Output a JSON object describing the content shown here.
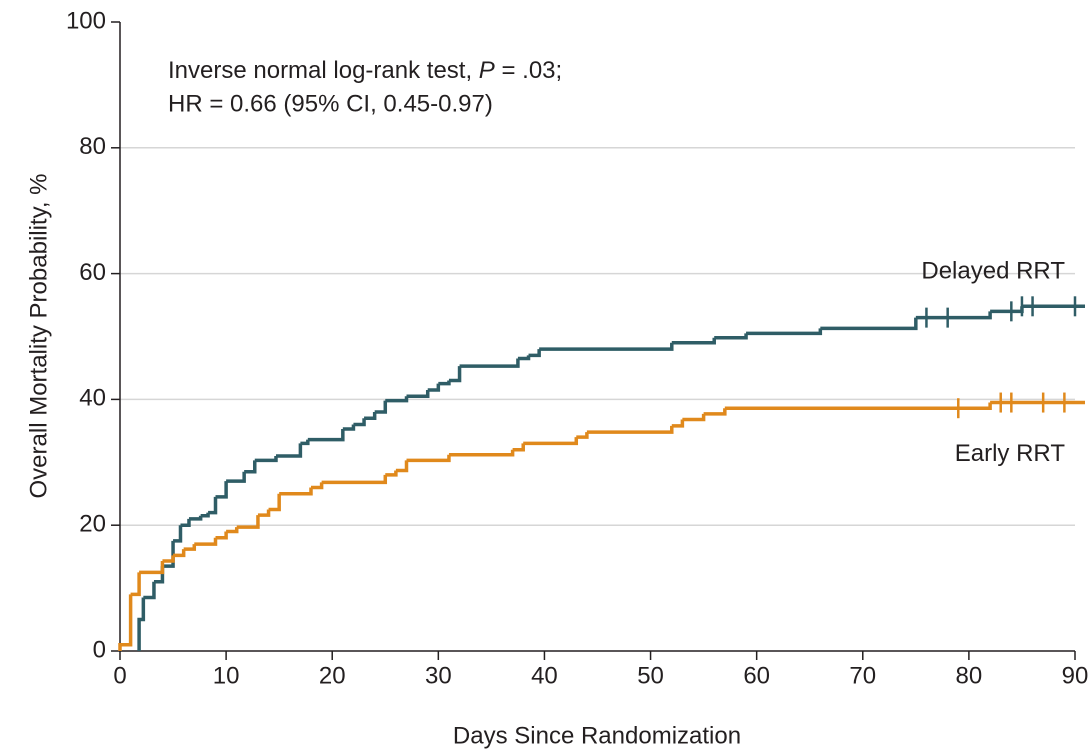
{
  "chart_data": {
    "type": "step",
    "xlabel": "Days Since Randomization",
    "ylabel": "Overall Mortality Probability, %",
    "annotation_line1": [
      "Inverse normal log-rank test, ",
      "P",
      " = .03;"
    ],
    "annotation_line2": "HR = 0.66 (95% CI, 0.45-0.97)",
    "xlim": [
      0,
      90
    ],
    "xticks": [
      0,
      10,
      20,
      30,
      40,
      50,
      60,
      70,
      80,
      90
    ],
    "ylim": [
      0,
      100
    ],
    "yticks": [
      0,
      20,
      40,
      60,
      80,
      100
    ],
    "grid": true,
    "series": [
      {
        "name": "Delayed RRT",
        "color": "#2f5d66",
        "x": [
          1.8,
          2.2,
          3.2,
          4,
          5,
          5.7,
          6.5,
          7.6,
          8.3,
          9,
          10,
          11.7,
          12.7,
          14.7,
          17,
          17.7,
          21,
          22,
          23,
          24,
          25,
          27,
          29,
          30,
          31,
          32,
          37.5,
          38.5,
          39.5,
          52,
          56,
          59,
          66,
          75,
          82,
          85
        ],
        "values": [
          5,
          8.5,
          11,
          13.5,
          17.5,
          20,
          21,
          21.5,
          22,
          24.5,
          27,
          28.5,
          30.3,
          31,
          33,
          33.6,
          35.3,
          36,
          37,
          38,
          39.8,
          40.5,
          41.5,
          42.5,
          43,
          45.3,
          46.5,
          47,
          48,
          49,
          49.8,
          50.5,
          51.3,
          53,
          54,
          54.8
        ],
        "censored": [
          76,
          78,
          84,
          85,
          86,
          90
        ]
      },
      {
        "name": "Early RRT",
        "color": "#e0891c",
        "x": [
          0,
          1,
          1.8,
          4,
          5,
          6,
          7,
          9,
          10,
          11,
          13,
          14,
          15,
          18,
          19,
          25,
          26,
          27,
          31,
          37,
          38,
          43,
          44,
          52,
          53,
          55,
          57,
          82
        ],
        "values": [
          1,
          9,
          12.5,
          14.3,
          15.2,
          16.2,
          17,
          18,
          19,
          19.7,
          21.6,
          22.5,
          25,
          26,
          26.8,
          28,
          28.7,
          30.3,
          31.2,
          32,
          33,
          34,
          34.8,
          35.8,
          36.8,
          37.7,
          38.6,
          39.5
        ],
        "censored": [
          79,
          83,
          84,
          87,
          89
        ]
      }
    ]
  }
}
